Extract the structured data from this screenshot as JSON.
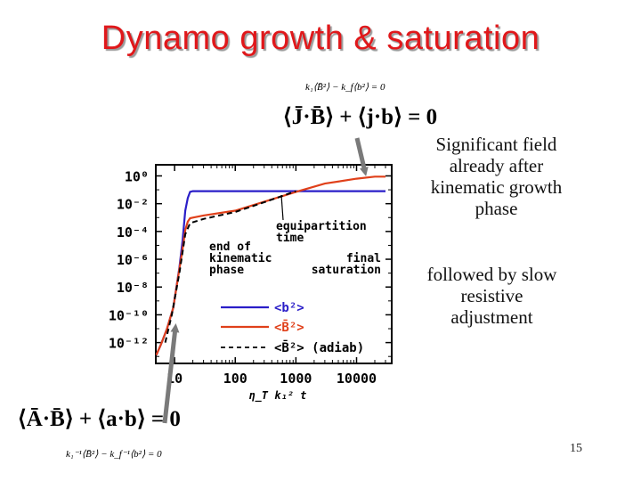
{
  "title": "Dynamo growth & saturation",
  "notes": {
    "note1": "Significant field already after kinematic growth phase",
    "note2": "followed by slow resistive adjustment"
  },
  "page_number": "15",
  "equations": {
    "top_small": "k₁⟨B̄²⟩ − k_f⟨b²⟩ = 0",
    "top_big": "⟨J̄·B̄⟩ + ⟨j·b⟩ = 0",
    "bottom_big": "⟨Ā·B̄⟩ + ⟨a·b⟩ = 0",
    "bottom_small": "k₁⁻¹⟨B̄²⟩ − k_f⁻¹⟨b²⟩ = 0"
  },
  "chart_data": {
    "type": "line",
    "xscale": "log",
    "yscale": "log",
    "xlabel": "η_T k₁² t",
    "xticks": [
      "10",
      "100",
      "1000",
      "10000"
    ],
    "yticks": [
      "10⁰",
      "10⁻²",
      "10⁻⁴",
      "10⁻⁶",
      "10⁻⁸",
      "10⁻¹⁰",
      "10⁻¹²"
    ],
    "series": [
      {
        "name": "<b²>",
        "color": "#2a1ec8",
        "style": "solid",
        "x": [
          5.0,
          6.0,
          7.5,
          9.5,
          12,
          13.5,
          15,
          16.5,
          18,
          20,
          30,
          100,
          1000,
          10000,
          30000
        ],
        "y": [
          -12.9,
          -12.1,
          -11.0,
          -9.5,
          -6.6,
          -4.7,
          -2.5,
          -1.6,
          -1.15,
          -1.1,
          -1.1,
          -1.1,
          -1.1,
          -1.1,
          -1.1
        ]
      },
      {
        "name": "<B̄²>",
        "color": "#e0401a",
        "style": "solid",
        "x": [
          5.0,
          6.0,
          7.5,
          9.5,
          12,
          13.5,
          15,
          16.5,
          18,
          20,
          30,
          100,
          1000,
          3000,
          10000,
          20000,
          30000
        ],
        "y": [
          -12.9,
          -12.1,
          -11.0,
          -9.5,
          -6.7,
          -5.3,
          -3.9,
          -3.3,
          -3.05,
          -3.0,
          -2.85,
          -2.5,
          -1.15,
          -0.55,
          -0.2,
          -0.05,
          -0.05
        ]
      },
      {
        "name": "<B̄²> (adiab)",
        "color": "#000000",
        "style": "dashed",
        "x": [
          7.0,
          9.0,
          12,
          15,
          18,
          30,
          100,
          300,
          1000
        ],
        "y": [
          -12.0,
          -10.0,
          -7.0,
          -4.2,
          -3.4,
          -3.1,
          -2.6,
          -1.9,
          -1.1
        ]
      }
    ],
    "annotations": [
      "equipartition time",
      "end of kinematic phase",
      "final saturation"
    ],
    "legend_placement": "lower-right"
  }
}
